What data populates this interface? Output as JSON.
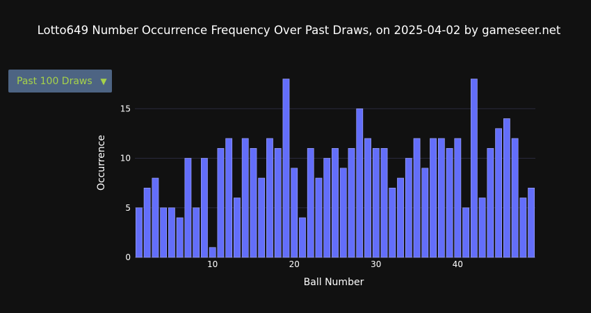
{
  "title": "Lotto649 Number Occurrence Frequency Over Past Draws, on 2025-04-02 by gameseer.net",
  "dropdown": {
    "selected": "Past 100 Draws",
    "caret": "▼"
  },
  "colors": {
    "background": "#111111",
    "bar_fill": "#636efa",
    "bar_stroke": "#a7adff",
    "grid": "#2a2a3e",
    "dropdown_bg": "#4d6483",
    "dropdown_text": "#a6d24a"
  },
  "chart_data": {
    "type": "bar",
    "title": "Lotto649 Number Occurrence Frequency Over Past Draws, on 2025-04-02 by gameseer.net",
    "xlabel": "Ball Number",
    "ylabel": "Occurrence",
    "x": [
      1,
      2,
      3,
      4,
      5,
      6,
      7,
      8,
      9,
      10,
      11,
      12,
      13,
      14,
      15,
      16,
      17,
      18,
      19,
      20,
      21,
      22,
      23,
      24,
      25,
      26,
      27,
      28,
      29,
      30,
      31,
      32,
      33,
      34,
      35,
      36,
      37,
      38,
      39,
      40,
      41,
      42,
      43,
      44,
      45,
      46,
      47,
      48,
      49
    ],
    "values": [
      5,
      7,
      8,
      5,
      5,
      4,
      10,
      5,
      10,
      1,
      11,
      12,
      6,
      12,
      11,
      8,
      12,
      11,
      18,
      9,
      4,
      11,
      8,
      10,
      11,
      9,
      11,
      15,
      12,
      11,
      11,
      7,
      8,
      10,
      12,
      9,
      12,
      12,
      11,
      12,
      5,
      18,
      6,
      11,
      13,
      14,
      12,
      6,
      7
    ],
    "xlim": [
      0.5,
      49.5
    ],
    "ylim": [
      0,
      18.95
    ],
    "xticks": [
      10,
      20,
      30,
      40
    ],
    "yticks": [
      0,
      5,
      10,
      15
    ],
    "grid": true
  }
}
